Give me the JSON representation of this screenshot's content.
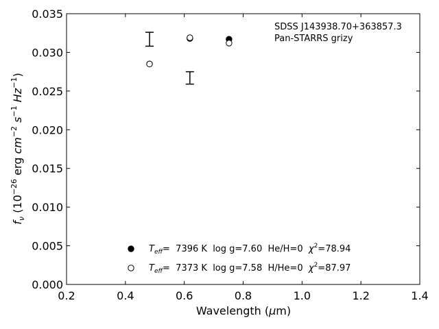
{
  "chart_data": {
    "type": "scatter",
    "title": "",
    "xlabel": "Wavelength (μm)",
    "ylabel": "f_ν (10^-26 erg cm^-2 s^-1 Hz^-1)",
    "xlim": [
      0.2,
      1.4
    ],
    "ylim": [
      0.0,
      0.035
    ],
    "x_ticks": [
      0.2,
      0.4,
      0.6,
      0.8,
      1.0,
      1.2,
      1.4
    ],
    "x_tick_labels": [
      "0.2",
      "0.4",
      "0.6",
      "0.8",
      "1.0",
      "1.2",
      "1.4"
    ],
    "y_ticks": [
      0.0,
      0.005,
      0.01,
      0.015,
      0.02,
      0.025,
      0.03,
      0.035
    ],
    "y_tick_labels": [
      "0.000",
      "0.005",
      "0.010",
      "0.015",
      "0.020",
      "0.025",
      "0.030",
      "0.035"
    ],
    "grid": false,
    "annotation": {
      "line1": "SDSS J143938.70+363857.3",
      "line2": "Pan-STARRS grizy"
    },
    "observed": [
      {
        "x": 0.482,
        "y": 0.0317,
        "err": 0.0009
      },
      {
        "x": 0.619,
        "y": 0.0267,
        "err": 0.0008
      }
    ],
    "series": [
      {
        "marker": "filled-circle",
        "color": "#000000",
        "legend_teff": "7396 K",
        "legend_logg": "log g=7.60",
        "legend_comp": "He/H=0",
        "legend_chi2": "=78.94",
        "x": [
          0.482,
          0.619,
          0.752
        ],
        "y": [
          0.0285,
          0.0318,
          0.0317
        ]
      },
      {
        "marker": "open-circle",
        "color": "#000000",
        "legend_teff": "7373 K",
        "legend_logg": "log g=7.58",
        "legend_comp": "H/He=0",
        "legend_chi2": "=87.97",
        "x": [
          0.482,
          0.619,
          0.752
        ],
        "y": [
          0.0285,
          0.0319,
          0.0312
        ]
      }
    ],
    "legend_position": "bottom-center"
  }
}
